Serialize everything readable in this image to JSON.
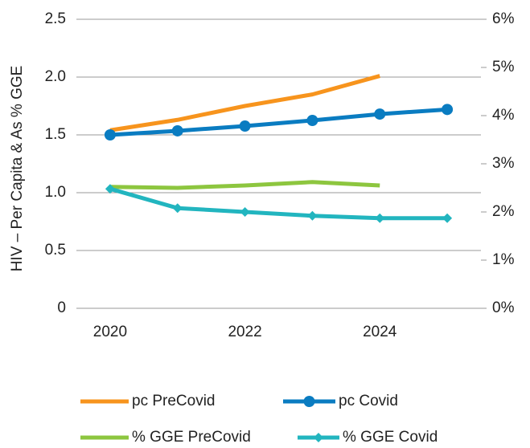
{
  "chart_data": {
    "type": "line",
    "y_label": "HIV – Per Capita & As % GGE",
    "x": [
      2020,
      2021,
      2022,
      2023,
      2024,
      2025
    ],
    "xlim": [
      2019.5,
      2025.5
    ],
    "xticks": [
      2020,
      2022,
      2024
    ],
    "ylim": [
      0,
      2.5
    ],
    "yticks": [
      0,
      0.5,
      {
        "value": 1,
        "label": "1.0"
      },
      1.5,
      {
        "value": 2,
        "label": "2.0"
      },
      2.5
    ],
    "y2lim": [
      0,
      6
    ],
    "y2ticks": [
      {
        "value": 0,
        "label": "0%"
      },
      {
        "value": 1,
        "label": "1%"
      },
      {
        "value": 2,
        "label": "2%"
      },
      {
        "value": 3,
        "label": "3%"
      },
      {
        "value": 4,
        "label": "4%"
      },
      {
        "value": 5,
        "label": "5%"
      },
      {
        "value": 6,
        "label": "6%"
      }
    ],
    "grid": true,
    "series": [
      {
        "name": "pc PreCovid",
        "color": "#f7941d",
        "marker": "none",
        "values": [
          1.54,
          1.63,
          1.75,
          1.85,
          2.01,
          null
        ]
      },
      {
        "name": "pc Covid",
        "color": "#0a7cc1",
        "marker": "circle",
        "values": [
          1.5,
          1.535,
          1.576,
          1.625,
          1.68,
          1.72
        ]
      },
      {
        "name": "% GGE PreCovid",
        "color": "#8dc63f",
        "marker": "none",
        "axis": "y2",
        "values": [
          2.52,
          2.5,
          2.55,
          2.62,
          2.55,
          null
        ]
      },
      {
        "name": "% GGE Covid",
        "color": "#22b5bf",
        "marker": "diamond",
        "axis": "y2",
        "values": [
          2.48,
          2.08,
          2.0,
          1.92,
          1.87,
          1.87
        ]
      }
    ]
  }
}
